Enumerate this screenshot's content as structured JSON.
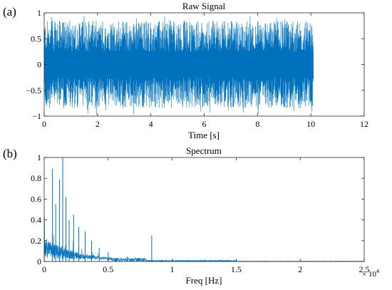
{
  "chart_data": [
    {
      "panel_label": "(a)",
      "type": "line",
      "title": "Raw Signal",
      "xlabel": "Time [s]",
      "ylabel": "",
      "xlim": [
        0,
        12
      ],
      "ylim": [
        -1,
        1
      ],
      "xticks": [
        0,
        2,
        4,
        6,
        8,
        10,
        12
      ],
      "xtick_labels": [
        "0",
        "2",
        "4",
        "6",
        "8",
        "10",
        "12"
      ],
      "yticks": [
        -1,
        -0.5,
        0,
        0.5,
        1
      ],
      "ytick_labels": [
        "−1",
        "−0.5",
        "0",
        "0.5",
        "1"
      ],
      "grid": false,
      "color": "#0072BD",
      "series": [
        {
          "description": "dense noise-like vibration signal",
          "x_range": [
            0,
            10.1
          ],
          "envelope_upper": 0.85,
          "envelope_lower": -0.85,
          "peak_max": 0.98,
          "peak_min": -0.98
        }
      ]
    },
    {
      "panel_label": "(b)",
      "type": "line",
      "title": "Spectrum",
      "xlabel": "Freq [Hz]",
      "ylabel": "",
      "x_multiplier_label": "× 10",
      "x_multiplier_exponent": "4",
      "xlim": [
        0,
        25000
      ],
      "ylim": [
        0,
        1
      ],
      "xticks": [
        0,
        5000,
        10000,
        15000,
        20000,
        25000
      ],
      "xtick_labels": [
        "0",
        "0.5",
        "1",
        "1.5",
        "2",
        "2.5"
      ],
      "yticks": [
        0,
        0.2,
        0.4,
        0.6,
        0.8,
        1
      ],
      "ytick_labels": [
        "0",
        "0.2",
        "0.4",
        "0.6",
        "0.8",
        "1"
      ],
      "grid": false,
      "color": "#0072BD",
      "peaks": [
        {
          "x": 650,
          "y": 0.89
        },
        {
          "x": 900,
          "y": 0.55
        },
        {
          "x": 1200,
          "y": 0.79
        },
        {
          "x": 1450,
          "y": 1.0
        },
        {
          "x": 1700,
          "y": 0.62
        },
        {
          "x": 1950,
          "y": 0.4
        },
        {
          "x": 2300,
          "y": 0.45
        },
        {
          "x": 2700,
          "y": 0.33
        },
        {
          "x": 3200,
          "y": 0.29
        },
        {
          "x": 3700,
          "y": 0.2
        },
        {
          "x": 4300,
          "y": 0.13
        },
        {
          "x": 5000,
          "y": 0.09
        },
        {
          "x": 6500,
          "y": 0.05
        },
        {
          "x": 8400,
          "y": 0.25
        }
      ]
    }
  ]
}
